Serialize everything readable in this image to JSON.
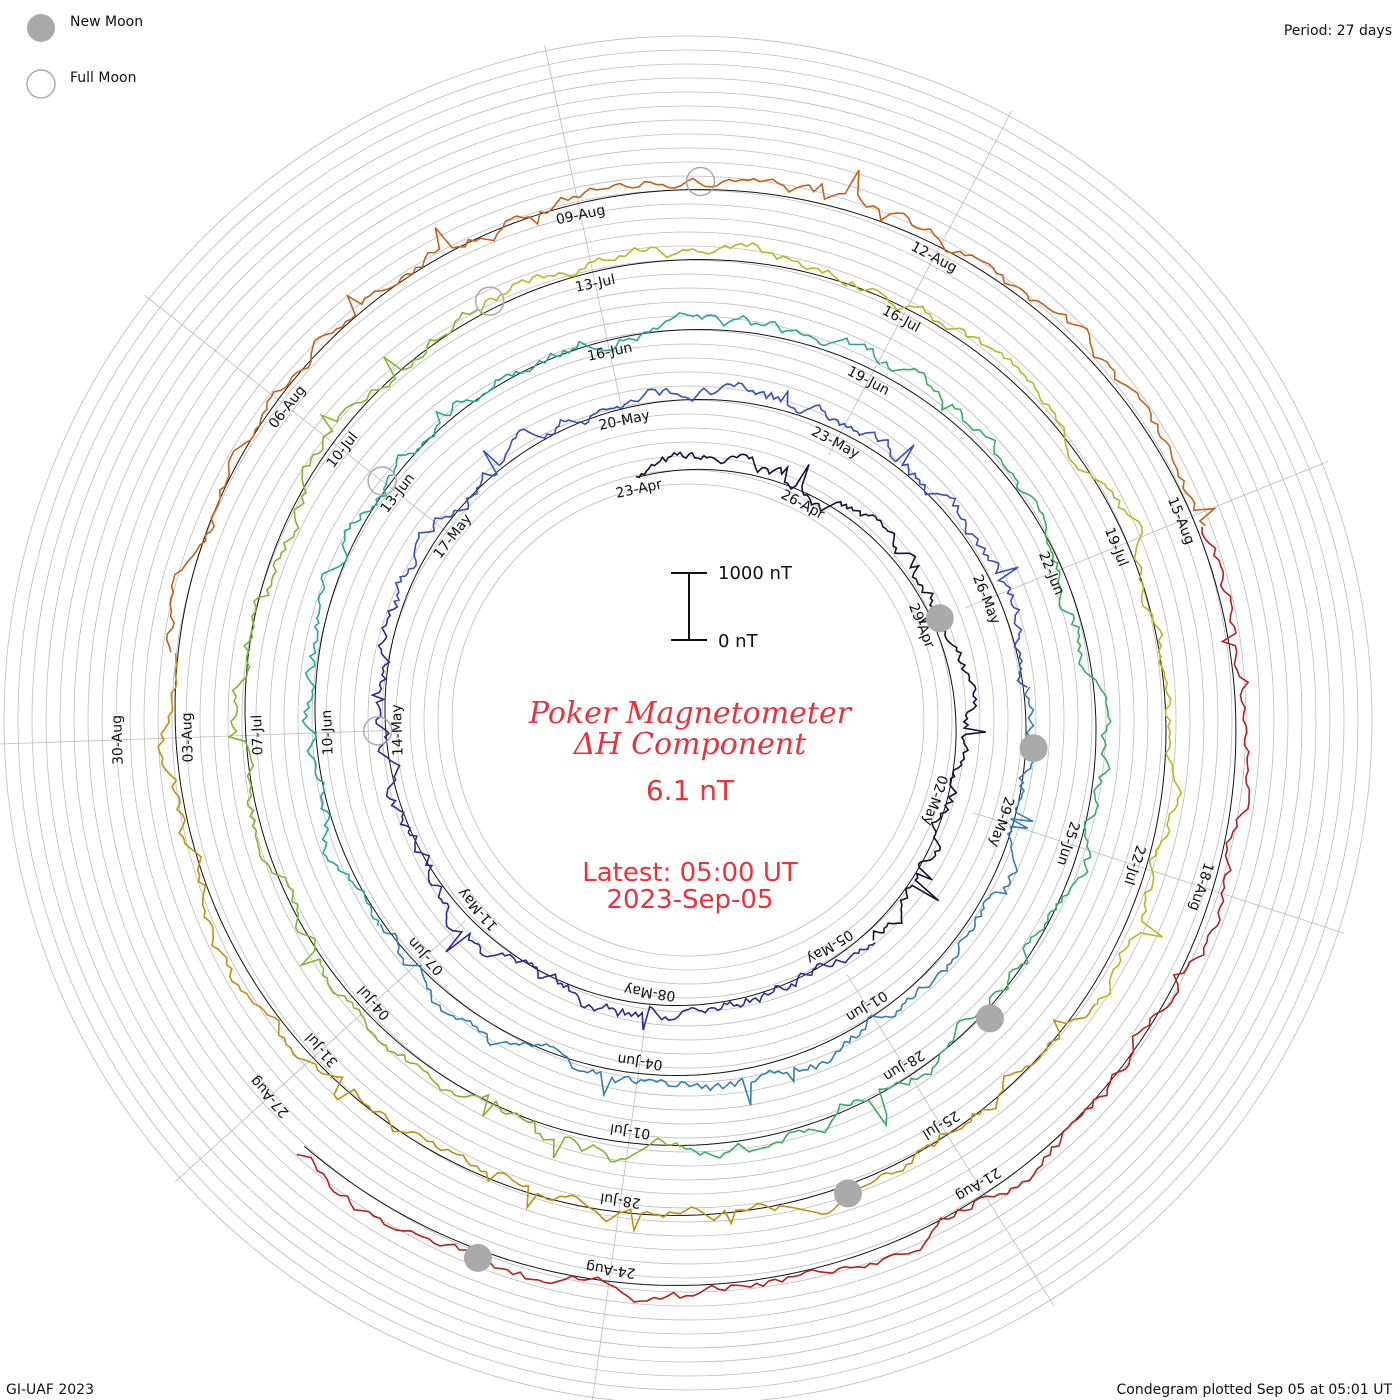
{
  "legend": {
    "new_moon": "New Moon",
    "full_moon": "Full Moon"
  },
  "period": "Period: 27 days",
  "title": {
    "line1": "Poker Magnetometer",
    "line2": "ΔH Component",
    "value": "6.1 nT"
  },
  "latest": {
    "label": "Latest: 05:00 UT",
    "date": "2023-Sep-05"
  },
  "scale": {
    "top_label": "1000 nT",
    "bottom_label": "0 nT"
  },
  "footer": {
    "credit": "GI-UAF 2023",
    "plotted": "Condegram plotted Sep 05 at 05:01 UT"
  },
  "colors": {
    "title": "#e8323c",
    "grid": "#bbbbbb",
    "moon_fill": "#aaaaaa",
    "ring_colors": [
      "#12103a",
      "#2a2a9a",
      "#3550c0",
      "#2f7fb8",
      "#25a89a",
      "#35b060",
      "#80b830",
      "#b8b820",
      "#c09010",
      "#c86018",
      "#b82018"
    ]
  },
  "chart_data": {
    "type": "condegram",
    "period_days": 27,
    "revolutions": [
      {
        "index": 0,
        "date_labels": [
          "23-Apr",
          "26-Apr",
          "29-Apr",
          "02-May",
          "05-May",
          "08-May",
          "11-May",
          "14-May",
          "17-May"
        ]
      },
      {
        "index": 1,
        "date_labels": [
          "20-May",
          "23-May",
          "26-May",
          "29-May",
          "01-Jun",
          "04-Jun",
          "07-Jun",
          "10-Jun",
          "13-Jun"
        ]
      },
      {
        "index": 2,
        "date_labels": [
          "16-Jun",
          "19-Jun",
          "22-Jun",
          "25-Jun",
          "28-Jun",
          "01-Jul",
          "04-Jul",
          "07-Jul",
          "10-Jul"
        ]
      },
      {
        "index": 3,
        "date_labels": [
          "13-Jul",
          "16-Jul",
          "19-Jul",
          "22-Jul",
          "25-Jul",
          "28-Jul",
          "31-Jul",
          "03-Aug",
          "06-Aug"
        ]
      },
      {
        "index": 4,
        "date_labels": [
          "09-Aug",
          "12-Aug",
          "15-Aug",
          "18-Aug",
          "21-Aug",
          "24-Aug",
          "27-Aug",
          "30-Aug"
        ]
      }
    ],
    "new_moons": [
      "2023-Apr-20",
      "2023-May-19",
      "2023-Jun-18",
      "2023-Jul-17",
      "2023-Aug-16"
    ],
    "full_moons": [
      "2023-May-05",
      "2023-Jun-04",
      "2023-Jul-03",
      "2023-Aug-01",
      "2023-Aug-31"
    ],
    "scale_bar_nT": [
      0,
      1000
    ],
    "latest_value_nT": 6.1
  }
}
